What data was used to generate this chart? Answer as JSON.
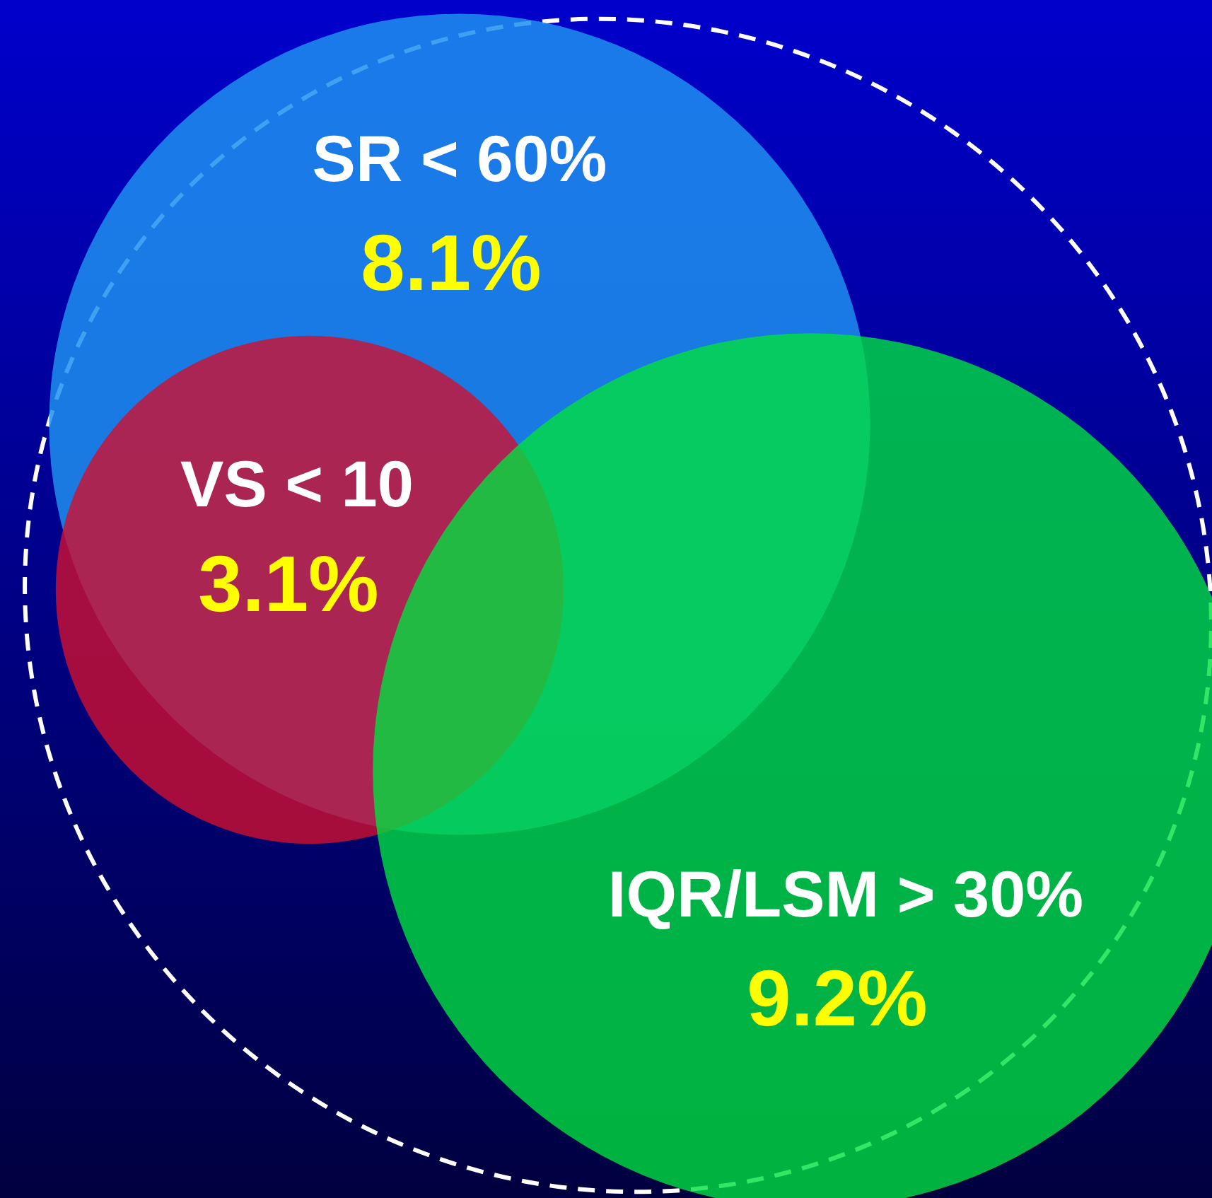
{
  "chart_data": {
    "type": "other",
    "categories": [
      "SR < 60%",
      "VS < 10",
      "IQR/LSM > 30%"
    ],
    "values": [
      8.1,
      3.1,
      9.2
    ],
    "value_labels": [
      "8.1%",
      "3.1%",
      "9.2%"
    ],
    "colors": [
      "#1e8ff0",
      "#d01030",
      "#00e040"
    ]
  }
}
